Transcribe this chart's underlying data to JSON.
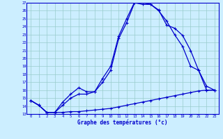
{
  "title": "Graphe des températures (°c)",
  "bg_color": "#cceeff",
  "line_color": "#0000cc",
  "ylim": [
    13,
    27
  ],
  "xlim": [
    -0.5,
    23.5
  ],
  "yticks": [
    13,
    14,
    15,
    16,
    17,
    18,
    19,
    20,
    21,
    22,
    23,
    24,
    25,
    26,
    27
  ],
  "xticks": [
    0,
    1,
    2,
    3,
    4,
    5,
    6,
    7,
    8,
    9,
    10,
    11,
    12,
    13,
    14,
    15,
    16,
    17,
    18,
    19,
    20,
    21,
    22,
    23
  ],
  "series1_y": [
    14.7,
    14.1,
    13.2,
    13.2,
    13.2,
    13.3,
    13.3,
    13.4,
    13.5,
    13.6,
    13.7,
    13.9,
    14.1,
    14.3,
    14.5,
    14.7,
    14.9,
    15.1,
    15.3,
    15.5,
    15.7,
    15.9,
    16.0,
    16.0
  ],
  "series2_y": [
    14.7,
    14.1,
    13.2,
    13.2,
    14.1,
    15.0,
    15.5,
    15.5,
    15.8,
    17.0,
    18.5,
    22.5,
    24.5,
    27.0,
    26.8,
    26.8,
    26.1,
    24.2,
    23.8,
    22.9,
    21.0,
    18.5,
    16.0,
    16.0
  ],
  "series3_y": [
    14.7,
    14.1,
    13.2,
    13.2,
    14.5,
    15.5,
    16.3,
    15.8,
    15.8,
    17.5,
    19.0,
    22.8,
    25.0,
    27.1,
    27.0,
    26.8,
    26.0,
    24.7,
    23.0,
    21.5,
    19.0,
    18.5,
    16.5,
    16.0
  ]
}
